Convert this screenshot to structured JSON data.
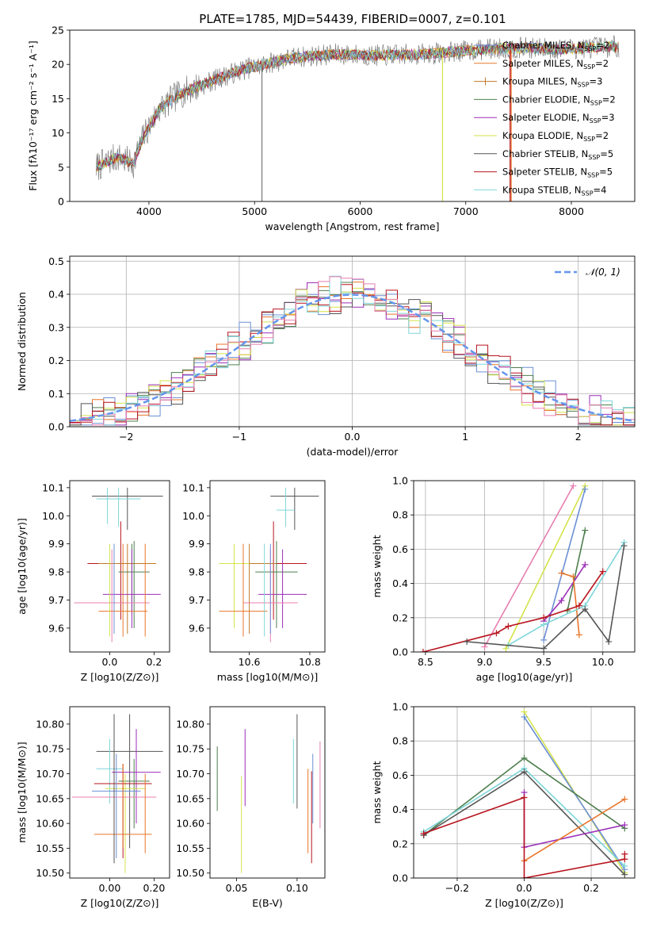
{
  "title": "PLATE=1785, MJD=54439, FIBERID=0007, z=0.101",
  "colors": {
    "Chabrier MILES": "#6b8fd6",
    "Salpeter MILES": "#e8762a",
    "Kroupa MILES": "#c07a26",
    "Chabrier ELODIE": "#4f7f4f",
    "Salpeter ELODIE": "#9b2fb8",
    "Kroupa ELODIE": "#d4e34a",
    "Chabrier STELIB": "#555555",
    "Salpeter STELIB": "#b8141e",
    "Kroupa STELIB": "#7fd6d9",
    "pink": "#e87fb0"
  },
  "chart_data": [
    {
      "id": "spectrum",
      "type": "line",
      "xlabel": "wavelength [Angstrom, rest frame]",
      "ylabel": "Flux [fλ10⁻¹⁷ erg cm⁻² s⁻¹ A⁻¹]",
      "xlim": [
        3250,
        8600
      ],
      "ylim": [
        0,
        25
      ],
      "xticks": [
        4000,
        5000,
        6000,
        7000,
        8000
      ],
      "yticks": [
        0,
        5,
        10,
        15,
        20,
        25
      ],
      "grid": false,
      "legend_position": "right",
      "legend": [
        {
          "label": "Chabrier MILES, N",
          "sub": "SSP",
          "suffix": "=2",
          "key": "Chabrier MILES",
          "marker": false
        },
        {
          "label": "Salpeter MILES, N",
          "sub": "SSP",
          "suffix": "=2",
          "key": "Salpeter MILES",
          "marker": false
        },
        {
          "label": "Kroupa MILES, N",
          "sub": "SSP",
          "suffix": "=3",
          "key": "Kroupa MILES",
          "marker": true
        },
        {
          "label": "Chabrier ELODIE, N",
          "sub": "SSP",
          "suffix": "=2",
          "key": "Chabrier ELODIE",
          "marker": false
        },
        {
          "label": "Salpeter ELODIE, N",
          "sub": "SSP",
          "suffix": "=3",
          "key": "Salpeter ELODIE",
          "marker": false
        },
        {
          "label": "Kroupa ELODIE, N",
          "sub": "SSP",
          "suffix": "=2",
          "key": "Kroupa ELODIE",
          "marker": false
        },
        {
          "label": "Chabrier STELIB, N",
          "sub": "SSP",
          "suffix": "=5",
          "key": "Chabrier STELIB",
          "marker": false
        },
        {
          "label": "Salpeter STELIB, N",
          "sub": "SSP",
          "suffix": "=5",
          "key": "Salpeter STELIB",
          "marker": false
        },
        {
          "label": "Kroupa STELIB, N",
          "sub": "SSP",
          "suffix": "=4",
          "key": "Kroupa STELIB",
          "marker": false
        }
      ],
      "continuum": {
        "x": [
          3500,
          3700,
          3850,
          3950,
          4100,
          4300,
          4500,
          4700,
          4900,
          5100,
          5300,
          5500,
          5800,
          6100,
          6400,
          6700,
          7000,
          7300,
          7600,
          7900,
          8200,
          8400
        ],
        "y": [
          5,
          6.5,
          5.5,
          9.5,
          13.5,
          15.8,
          17,
          18.2,
          19.3,
          20,
          20.8,
          21.2,
          21.5,
          21.3,
          21.4,
          21.6,
          22,
          22.3,
          22.4,
          22.2,
          22.5,
          22.6
        ]
      },
      "spikes": [
        {
          "x": 5070,
          "y0": 20,
          "y1": 0,
          "color": "#777777"
        },
        {
          "x": 6780,
          "y0": 22,
          "y1": 0,
          "color": "#d4e34a"
        },
        {
          "x": 7430,
          "y0": 22,
          "y1": 0,
          "color": "#e8762a"
        },
        {
          "x": 7420,
          "y0": 22,
          "y1": 0,
          "color": "#b8141e"
        }
      ]
    },
    {
      "id": "residual-histogram",
      "type": "step",
      "xlabel": "(data-model)/error",
      "ylabel": "Normed distribution",
      "xlim": [
        -2.5,
        2.5
      ],
      "ylim": [
        0,
        0.515
      ],
      "xticks": [
        -2,
        -1,
        0,
        1,
        2
      ],
      "yticks": [
        0.0,
        0.1,
        0.2,
        0.3,
        0.4,
        0.5
      ],
      "grid": true,
      "legend": "N(0,1)",
      "legend_position": "top-right",
      "bins": {
        "start": -2.5,
        "width": 0.1,
        "count": 50
      },
      "histograms": [
        {
          "key": "Chabrier MILES",
          "phase": 0.0
        },
        {
          "key": "Salpeter MILES",
          "phase": 1.3
        },
        {
          "key": "Chabrier ELODIE",
          "phase": 2.1
        },
        {
          "key": "Salpeter ELODIE",
          "phase": 3.4
        },
        {
          "key": "Kroupa ELODIE",
          "phase": 4.2
        },
        {
          "key": "Chabrier STELIB",
          "phase": 5.5
        },
        {
          "key": "Salpeter STELIB",
          "phase": 6.7
        },
        {
          "key": "Kroupa STELIB",
          "phase": 7.9
        },
        {
          "key": "pink",
          "phase": 8.6
        }
      ]
    },
    {
      "id": "age-vs-Z",
      "type": "errorbar",
      "xlabel": "Z [log10(Z/Z⊙)]",
      "ylabel": "age  [log10(age/yr)]",
      "xlim": [
        -0.18,
        0.27
      ],
      "ylim": [
        9.515,
        10.125
      ],
      "xticks": [
        0.0,
        0.2
      ],
      "yticks": [
        9.6,
        9.7,
        9.8,
        9.9,
        10.0,
        10.1
      ],
      "grid": false,
      "points": [
        {
          "key": "Chabrier STELIB",
          "x": 0.08,
          "xerr": 0.16,
          "y": 10.07,
          "ylo": 9.95,
          "yhi": 10.1
        },
        {
          "key": "Kroupa STELIB",
          "x": 0.04,
          "xerr": 0.1,
          "y": 10.06,
          "ylo": 9.96,
          "yhi": 10.1
        },
        {
          "key": "Kroupa STELIB",
          "x": -0.01,
          "xerr": 0.0,
          "y": 10.06,
          "ylo": 9.97,
          "yhi": 10.1
        },
        {
          "key": "Salpeter STELIB",
          "x": 0.05,
          "xerr": 0.15,
          "y": 9.83,
          "ylo": 9.63,
          "yhi": 9.98
        },
        {
          "key": "Kroupa MILES",
          "x": 0.08,
          "xerr": 0.13,
          "y": 9.83,
          "ylo": 9.58,
          "yhi": 9.9
        },
        {
          "key": "Chabrier ELODIE",
          "x": 0.11,
          "xerr": 0.07,
          "y": 9.8,
          "ylo": 9.6,
          "yhi": 9.91
        },
        {
          "key": "Chabrier ELODIE",
          "x": 0.1,
          "xerr": 0.0,
          "y": 9.8,
          "ylo": 9.65,
          "yhi": 9.9
        },
        {
          "key": "Salpeter ELODIE",
          "x": 0.1,
          "xerr": 0.13,
          "y": 9.72,
          "ylo": 9.6,
          "yhi": 9.88
        },
        {
          "key": "pink",
          "x": 0.01,
          "xerr": 0.17,
          "y": 9.69,
          "ylo": 9.55,
          "yhi": 9.88
        },
        {
          "key": "Salpeter MILES",
          "x": 0.06,
          "xerr": 0.11,
          "y": 9.66,
          "ylo": 9.57,
          "yhi": 9.9
        },
        {
          "key": "Chabrier MILES",
          "x": 0.02,
          "xerr": 0.0,
          "y": 9.69,
          "ylo": 9.58,
          "yhi": 9.9
        },
        {
          "key": "Kroupa ELODIE",
          "x": 0.0,
          "xerr": 0.0,
          "y": 9.8,
          "ylo": 9.57,
          "yhi": 9.9
        },
        {
          "key": "Salpeter MILES",
          "x": 0.16,
          "xerr": 0.0,
          "y": 9.75,
          "ylo": 9.57,
          "yhi": 9.9
        }
      ]
    },
    {
      "id": "age-vs-mass",
      "type": "errorbar",
      "xlabel": "mass [log10(M/M⊙)]",
      "ylabel": "",
      "xlim": [
        10.47,
        10.85
      ],
      "ylim": [
        9.515,
        10.125
      ],
      "xticks": [
        10.6,
        10.8
      ],
      "yticks": [
        9.6,
        9.7,
        9.8,
        9.9,
        10.0,
        10.1
      ],
      "grid": false,
      "points": [
        {
          "key": "Chabrier STELIB",
          "x": 10.75,
          "xerr": 0.08,
          "y": 10.07,
          "ylo": 9.95,
          "yhi": 10.1
        },
        {
          "key": "Kroupa STELIB",
          "x": 10.72,
          "xerr": 0.03,
          "y": 10.02,
          "ylo": 9.96,
          "yhi": 10.1
        },
        {
          "key": "Salpeter STELIB",
          "x": 10.68,
          "xerr": 0.11,
          "y": 9.83,
          "ylo": 9.63,
          "yhi": 9.98
        },
        {
          "key": "Kroupa MILES",
          "x": 10.6,
          "xerr": 0.09,
          "y": 9.83,
          "ylo": 9.58,
          "yhi": 9.9
        },
        {
          "key": "Chabrier ELODIE",
          "x": 10.69,
          "xerr": 0.07,
          "y": 9.8,
          "ylo": 9.6,
          "yhi": 9.91
        },
        {
          "key": "Kroupa ELODIE",
          "x": 10.55,
          "xerr": 0.05,
          "y": 9.83,
          "ylo": 9.6,
          "yhi": 9.9
        },
        {
          "key": "Salpeter ELODIE",
          "x": 10.71,
          "xerr": 0.08,
          "y": 9.72,
          "ylo": 9.6,
          "yhi": 9.88
        },
        {
          "key": "pink",
          "x": 10.67,
          "xerr": 0.09,
          "y": 9.69,
          "ylo": 9.55,
          "yhi": 9.88
        },
        {
          "key": "Salpeter MILES",
          "x": 10.58,
          "xerr": 0.08,
          "y": 9.66,
          "ylo": 9.57,
          "yhi": 9.9
        },
        {
          "key": "Chabrier MILES",
          "x": 10.67,
          "xerr": 0.0,
          "y": 9.7,
          "ylo": 9.58,
          "yhi": 9.9
        },
        {
          "key": "Kroupa STELIB",
          "x": 10.65,
          "xerr": 0.0,
          "y": 9.7,
          "ylo": 9.57,
          "yhi": 9.9
        }
      ]
    },
    {
      "id": "mass-weight-vs-age",
      "type": "line",
      "xlabel": "age  [log10(age/yr)]",
      "ylabel": "mass weight",
      "xlim": [
        8.4,
        10.27
      ],
      "ylim": [
        0.0,
        1.0
      ],
      "xticks": [
        8.5,
        9.0,
        9.5,
        10.0
      ],
      "yticks": [
        0.0,
        0.2,
        0.4,
        0.6,
        0.8,
        1.0
      ],
      "grid": true,
      "series": [
        {
          "key": "pink",
          "x": [
            9.0,
            9.75
          ],
          "y": [
            0.03,
            0.97
          ]
        },
        {
          "key": "Kroupa ELODIE",
          "x": [
            9.18,
            9.85
          ],
          "y": [
            0.02,
            0.97
          ]
        },
        {
          "key": "Chabrier MILES",
          "x": [
            9.5,
            9.85
          ],
          "y": [
            0.07,
            0.95
          ]
        },
        {
          "key": "Chabrier ELODIE",
          "x": [
            9.7,
            9.85
          ],
          "y": [
            0.24,
            0.71
          ]
        },
        {
          "key": "Salpeter ELODIE",
          "x": [
            9.5,
            9.65,
            9.85
          ],
          "y": [
            0.18,
            0.3,
            0.51
          ]
        },
        {
          "key": "Salpeter MILES",
          "x": [
            9.65,
            9.75,
            9.8
          ],
          "y": [
            0.46,
            0.44,
            0.1
          ]
        },
        {
          "key": "Kroupa STELIB",
          "x": [
            9.2,
            9.5,
            9.85,
            10.18
          ],
          "y": [
            0.04,
            0.16,
            0.27,
            0.64
          ]
        },
        {
          "key": "Salpeter STELIB",
          "x": [
            8.48,
            9.1,
            9.2,
            9.5,
            9.8,
            10.0
          ],
          "y": [
            0.0,
            0.11,
            0.15,
            0.2,
            0.27,
            0.47
          ]
        },
        {
          "key": "Chabrier STELIB",
          "x": [
            8.85,
            9.5,
            9.85,
            10.05,
            10.18
          ],
          "y": [
            0.06,
            0.02,
            0.25,
            0.06,
            0.62
          ]
        }
      ]
    },
    {
      "id": "mass-vs-Z",
      "type": "errorbar",
      "xlabel": "Z [log10(Z/Z⊙)]",
      "ylabel": "mass [log10(M/M⊙)]",
      "xlim": [
        -0.18,
        0.27
      ],
      "ylim": [
        10.49,
        10.835
      ],
      "xticks": [
        0.0,
        0.2
      ],
      "yticks": [
        10.5,
        10.55,
        10.6,
        10.65,
        10.7,
        10.75,
        10.8
      ],
      "grid": false,
      "points": [
        {
          "key": "Chabrier STELIB",
          "x": 0.09,
          "xerr": 0.15,
          "y": 10.745,
          "ylo": 10.55,
          "yhi": 10.82
        },
        {
          "key": "Kroupa STELIB",
          "x": 0.0,
          "xerr": 0.06,
          "y": 10.71,
          "ylo": 10.64,
          "yhi": 10.77
        },
        {
          "key": "Salpeter ELODIE",
          "x": 0.12,
          "xerr": 0.11,
          "y": 10.703,
          "ylo": 10.6,
          "yhi": 10.79
        },
        {
          "key": "Chabrier ELODIE",
          "x": 0.11,
          "xerr": 0.07,
          "y": 10.685,
          "ylo": 10.59,
          "yhi": 10.73
        },
        {
          "key": "Kroupa ELODIE",
          "x": 0.07,
          "xerr": 0.09,
          "y": 10.67,
          "ylo": 10.5,
          "yhi": 10.7
        },
        {
          "key": "Salpeter STELIB",
          "x": 0.06,
          "xerr": 0.13,
          "y": 10.68,
          "ylo": 10.53,
          "yhi": 10.72
        },
        {
          "key": "Chabrier MILES",
          "x": 0.03,
          "xerr": 0.11,
          "y": 10.665,
          "ylo": 10.53,
          "yhi": 10.74
        },
        {
          "key": "pink",
          "x": 0.02,
          "xerr": 0.19,
          "y": 10.653,
          "ylo": 10.52,
          "yhi": 10.72
        },
        {
          "key": "Salpeter MILES",
          "x": 0.06,
          "xerr": 0.13,
          "y": 10.578,
          "ylo": 10.55,
          "yhi": 10.72
        },
        {
          "key": "Salpeter MILES",
          "x": 0.16,
          "xerr": 0.0,
          "y": 10.6,
          "ylo": 10.54,
          "yhi": 10.7
        },
        {
          "key": "Chabrier STELIB",
          "x": 0.02,
          "xerr": 0.0,
          "y": 10.75,
          "ylo": 10.52,
          "yhi": 10.82
        }
      ]
    },
    {
      "id": "mass-vs-EBV",
      "type": "errorbar",
      "xlabel": "E(B-V)",
      "ylabel": "",
      "xlim": [
        0.028,
        0.123
      ],
      "ylim": [
        10.49,
        10.835
      ],
      "xticks": [
        0.05,
        0.1
      ],
      "yticks": [
        10.5,
        10.55,
        10.6,
        10.65,
        10.7,
        10.75,
        10.8
      ],
      "grid": false,
      "points": [
        {
          "key": "Chabrier ELODIE",
          "x": 0.034,
          "xerr": 0.0,
          "y": 10.69,
          "ylo": 10.625,
          "yhi": 10.755
        },
        {
          "key": "Kroupa ELODIE",
          "x": 0.054,
          "xerr": 0.0,
          "y": 10.6,
          "ylo": 10.5,
          "yhi": 10.695
        },
        {
          "key": "Salpeter ELODIE",
          "x": 0.057,
          "xerr": 0.0,
          "y": 10.71,
          "ylo": 10.635,
          "yhi": 10.79
        },
        {
          "key": "Kroupa STELIB",
          "x": 0.097,
          "xerr": 0.0,
          "y": 10.7,
          "ylo": 10.64,
          "yhi": 10.77
        },
        {
          "key": "Chabrier STELIB",
          "x": 0.1,
          "xerr": 0.0,
          "y": 10.72,
          "ylo": 10.63,
          "yhi": 10.82
        },
        {
          "key": "Salpeter MILES",
          "x": 0.109,
          "xerr": 0.0,
          "y": 10.64,
          "ylo": 10.54,
          "yhi": 10.71
        },
        {
          "key": "Salpeter STELIB",
          "x": 0.112,
          "xerr": 0.0,
          "y": 10.63,
          "ylo": 10.52,
          "yhi": 10.705
        },
        {
          "key": "Chabrier MILES",
          "x": 0.113,
          "xerr": 0.0,
          "y": 10.69,
          "ylo": 10.6,
          "yhi": 10.74
        },
        {
          "key": "pink",
          "x": 0.119,
          "xerr": 0.0,
          "y": 10.68,
          "ylo": 10.59,
          "yhi": 10.765
        }
      ]
    },
    {
      "id": "mass-weight-vs-Z",
      "type": "line",
      "xlabel": "Z [log10(Z/Z⊙)]",
      "ylabel": "mass weight",
      "xlim": [
        -0.33,
        0.33
      ],
      "ylim": [
        0.0,
        1.0
      ],
      "xticks": [
        -0.2,
        0.0,
        0.2
      ],
      "yticks": [
        0.0,
        0.2,
        0.4,
        0.6,
        0.8,
        1.0
      ],
      "grid": true,
      "series": [
        {
          "key": "Kroupa ELODIE",
          "x": [
            0.0,
            0.3
          ],
          "y": [
            0.97,
            0.03
          ]
        },
        {
          "key": "Chabrier MILES",
          "x": [
            0.0,
            0.3
          ],
          "y": [
            0.94,
            0.05
          ]
        },
        {
          "key": "Chabrier ELODIE",
          "x": [
            -0.3,
            0.0,
            0.3
          ],
          "y": [
            0.25,
            0.7,
            0.29
          ]
        },
        {
          "key": "Kroupa STELIB",
          "x": [
            -0.3,
            0.0,
            0.3
          ],
          "y": [
            0.27,
            0.64,
            0.07
          ]
        },
        {
          "key": "Chabrier STELIB",
          "x": [
            -0.3,
            0.0,
            0.3
          ],
          "y": [
            0.25,
            0.62,
            0.02
          ]
        },
        {
          "key": "Salpeter ELODIE",
          "x": [
            0.0,
            0.0,
            0.3
          ],
          "y": [
            0.5,
            0.18,
            0.31
          ]
        },
        {
          "key": "Salpeter MILES",
          "x": [
            0.0,
            0.3
          ],
          "y": [
            0.1,
            0.46
          ]
        },
        {
          "key": "Salpeter STELIB",
          "x": [
            -0.3,
            0.0,
            0.0,
            0.3,
            0.3
          ],
          "y": [
            0.26,
            0.47,
            0.0,
            0.11,
            0.14
          ]
        }
      ]
    }
  ]
}
